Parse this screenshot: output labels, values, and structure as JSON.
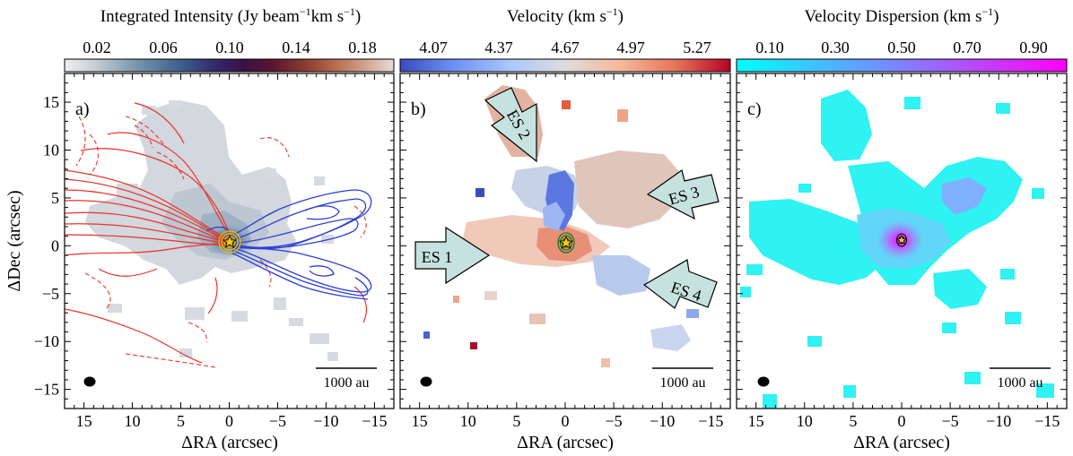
{
  "chart_data": [
    {
      "type": "heatmap",
      "panel_label": "a)",
      "colorbar": {
        "title_main": "Integrated Intensity (Jy beam",
        "title_exp": "−1",
        "title_tail": "km s",
        "title_exp2": "−1",
        "title_end": ")",
        "ticks": [
          "0.02",
          "0.06",
          "0.10",
          "0.14",
          "0.18"
        ],
        "range": [
          0.0,
          0.2
        ],
        "colors": [
          "#eeeeee",
          "#c7cfd6",
          "#8fa6b8",
          "#5d80a0",
          "#3a5a8a",
          "#342a6c",
          "#3a1044",
          "#5c1530",
          "#8a3a30",
          "#b46a4c",
          "#d0a08a",
          "#e8dcd6"
        ]
      },
      "xlabel": "ΔRA (arcsec)",
      "ylabel": "ΔDec (arcsec)",
      "x_ticks": [
        "15",
        "10",
        "5",
        "0",
        "−5",
        "−10",
        "−15"
      ],
      "x_tick_values": [
        15,
        10,
        5,
        0,
        -5,
        -10,
        -15
      ],
      "y_ticks": [
        "15",
        "10",
        "5",
        "0",
        "−5",
        "−10",
        "−15"
      ],
      "y_tick_values": [
        15,
        10,
        5,
        0,
        -5,
        -10,
        -15
      ],
      "xlim": [
        17,
        -17
      ],
      "ylim": [
        -17,
        18
      ],
      "scalebar_label": "1000 au",
      "contours": {
        "red": "#e8332a",
        "blue": "#2b3fd6",
        "center": "#e8b800"
      }
    },
    {
      "type": "heatmap",
      "panel_label": "b)",
      "colorbar": {
        "title_main": "Velocity (km s",
        "title_exp": "−1",
        "title_end": ")",
        "ticks": [
          "4.07",
          "4.37",
          "4.67",
          "4.97",
          "5.27"
        ],
        "range": [
          3.92,
          5.42
        ],
        "colors": [
          "#3a4cc0",
          "#6f92f3",
          "#aac7fd",
          "#dddddd",
          "#f7b89c",
          "#e7745b",
          "#b40426"
        ]
      },
      "xlabel": "ΔRA (arcsec)",
      "x_ticks": [
        "15",
        "10",
        "5",
        "0",
        "−5",
        "−10",
        "−15"
      ],
      "x_tick_values": [
        15,
        10,
        5,
        0,
        -5,
        -10,
        -15
      ],
      "xlim": [
        17,
        -17
      ],
      "ylim": [
        -17,
        18
      ],
      "scalebar_label": "1000 au",
      "annotations": [
        "ES 1",
        "ES 2",
        "ES 3",
        "ES 4"
      ]
    },
    {
      "type": "heatmap",
      "panel_label": "c)",
      "colorbar": {
        "title_main": "Velocity Dispersion (km s",
        "title_exp": "−1",
        "title_end": ")",
        "ticks": [
          "0.10",
          "0.30",
          "0.50",
          "0.70",
          "0.90"
        ],
        "range": [
          0.0,
          1.0
        ],
        "colors": [
          "#00ffff",
          "#8080ff",
          "#ff00ff"
        ]
      },
      "xlabel": "ΔRA (arcsec)",
      "x_ticks": [
        "15",
        "10",
        "5",
        "0",
        "−5",
        "−10",
        "−15"
      ],
      "x_tick_values": [
        15,
        10,
        5,
        0,
        -5,
        -10,
        -15
      ],
      "xlim": [
        17,
        -17
      ],
      "ylim": [
        -17,
        18
      ],
      "scalebar_label": "1000 au"
    }
  ],
  "style": {
    "arrow_fill": "#c6e2de",
    "arrow_stroke": "#000000",
    "star_color": "#f5d000"
  }
}
